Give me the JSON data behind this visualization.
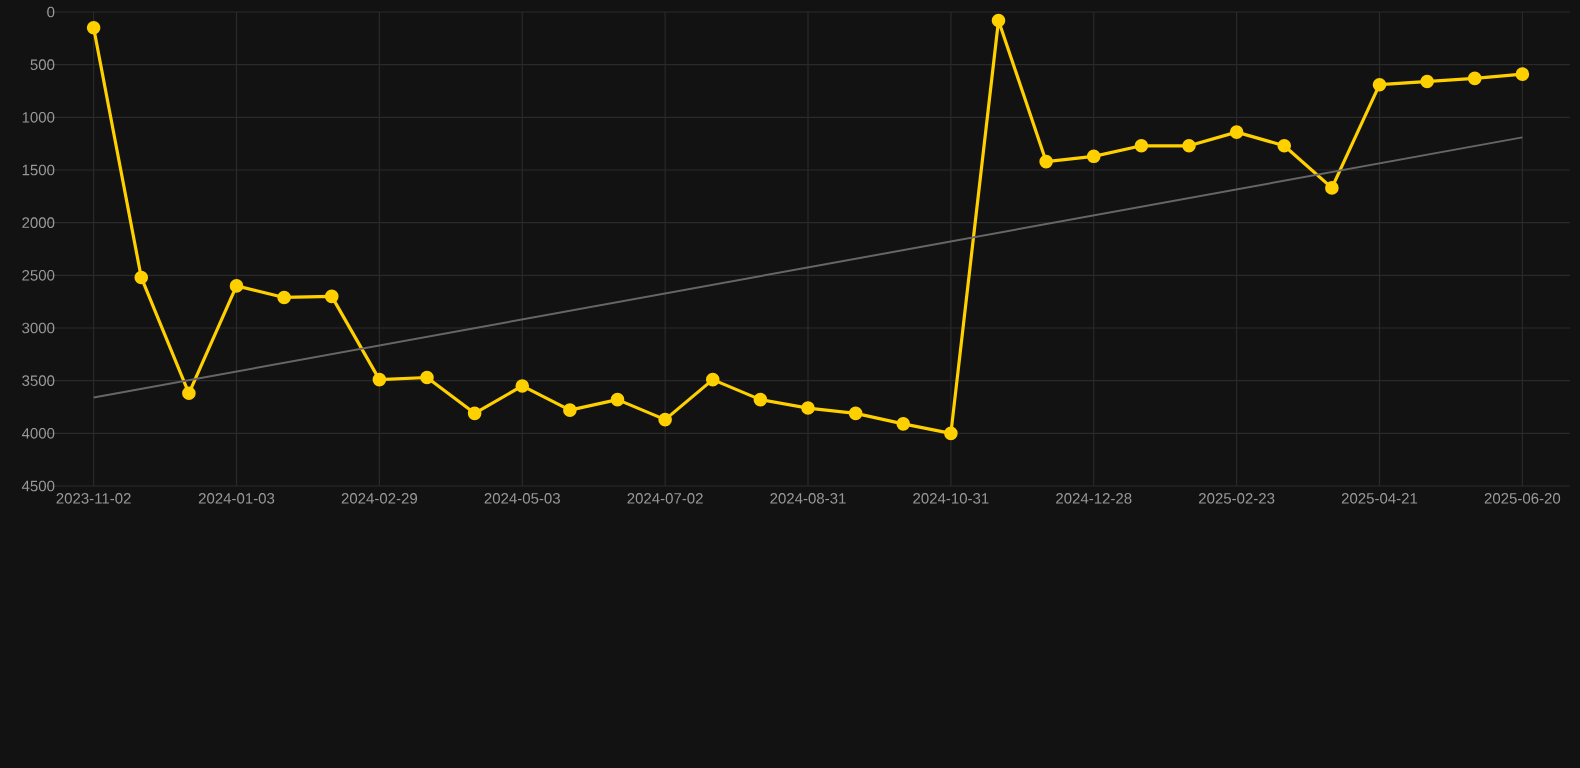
{
  "chart_data": {
    "type": "line",
    "categories": [
      "2023-11-02",
      null,
      null,
      "2024-01-03",
      null,
      null,
      "2024-02-29",
      null,
      null,
      "2024-05-03",
      null,
      null,
      "2024-07-02",
      null,
      null,
      "2024-08-31",
      null,
      null,
      "2024-10-31",
      null,
      null,
      "2024-12-28",
      null,
      null,
      "2025-02-23",
      null,
      null,
      "2025-04-21",
      null,
      null,
      "2025-06-20"
    ],
    "series": [
      {
        "color": "#ffd000",
        "marker": "circle",
        "values": [
          150,
          2520,
          3620,
          2600,
          2710,
          2700,
          3490,
          3470,
          3810,
          3550,
          3780,
          3680,
          3870,
          3490,
          3680,
          3760,
          3810,
          3910,
          4000,
          80,
          1420,
          1370,
          1270,
          1270,
          1140,
          1270,
          1670,
          690,
          660,
          630,
          590
        ]
      },
      {
        "type": "line",
        "color": "#666666",
        "marker": "none",
        "values": [
          3660,
          null,
          null,
          null,
          null,
          null,
          null,
          null,
          null,
          null,
          null,
          null,
          null,
          null,
          null,
          null,
          null,
          null,
          null,
          null,
          null,
          null,
          null,
          null,
          null,
          null,
          null,
          null,
          null,
          null,
          1190
        ]
      }
    ],
    "ylim": [
      4500,
      0
    ],
    "yticks": [
      0,
      500,
      1000,
      1500,
      2000,
      2500,
      3000,
      3500,
      4000,
      4500
    ],
    "grid": true
  }
}
